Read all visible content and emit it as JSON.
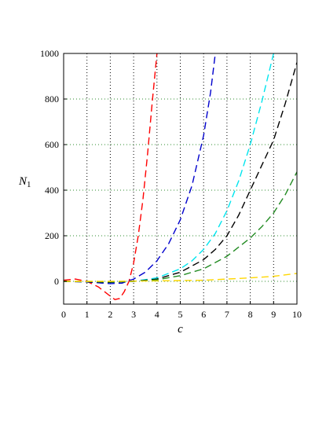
{
  "chart_data": {
    "type": "line",
    "xlabel": "c",
    "ylabel_main": "N",
    "ylabel_sub": "1",
    "xlim": [
      0,
      10
    ],
    "ylim": [
      -100,
      1000
    ],
    "xticks": [
      0,
      1,
      2,
      3,
      4,
      5,
      6,
      7,
      8,
      9,
      10
    ],
    "yticks": [
      0,
      200,
      400,
      600,
      800,
      1000
    ],
    "grid": {
      "vertical": {
        "style": "dotted",
        "color": "#000000"
      },
      "horizontal": {
        "style": "dotted",
        "color": "#2e8b2e"
      }
    },
    "legend": "none",
    "series": [
      {
        "color": "#ff0000",
        "style": "dashed",
        "x": [
          0,
          0.5,
          1.0,
          1.5,
          2.0,
          2.2,
          2.4,
          2.6,
          2.8,
          3.0,
          3.2,
          3.4,
          3.6,
          3.8,
          4.0
        ],
        "y": [
          5,
          10,
          0,
          -25,
          -65,
          -80,
          -75,
          -45,
          0,
          80,
          200,
          360,
          560,
          790,
          1000
        ]
      },
      {
        "color": "#0000cd",
        "style": "dashed",
        "x": [
          0,
          1,
          2,
          2.5,
          3.0,
          3.5,
          4.0,
          4.5,
          5.0,
          5.5,
          6.0,
          6.3,
          6.5
        ],
        "y": [
          0,
          -3,
          -10,
          -8,
          10,
          40,
          90,
          165,
          270,
          420,
          640,
          830,
          1000
        ]
      },
      {
        "color": "#00e5ee",
        "style": "dashed",
        "x": [
          0,
          1,
          2,
          3,
          4,
          5,
          5.5,
          6,
          6.5,
          7,
          7.5,
          8,
          8.5,
          9.0
        ],
        "y": [
          0,
          -2,
          -5,
          0,
          15,
          55,
          90,
          140,
          210,
          310,
          440,
          600,
          790,
          1000
        ]
      },
      {
        "color": "#000000",
        "style": "dashed",
        "x": [
          0,
          1,
          2,
          3,
          4,
          5,
          6,
          6.5,
          7,
          7.5,
          8,
          8.5,
          9,
          9.5,
          10
        ],
        "y": [
          0,
          -2,
          -4,
          0,
          10,
          40,
          95,
          140,
          200,
          290,
          400,
          510,
          620,
          780,
          960
        ]
      },
      {
        "color": "#228b22",
        "style": "dashed",
        "x": [
          0,
          1,
          2,
          3,
          4,
          5,
          6,
          7,
          8,
          8.5,
          9,
          9.5,
          10
        ],
        "y": [
          0,
          -1,
          -2,
          0,
          7,
          25,
          55,
          110,
          190,
          240,
          300,
          380,
          480
        ]
      },
      {
        "color": "#ffd700",
        "style": "dashed",
        "x": [
          0,
          2,
          4,
          6,
          7,
          8,
          9,
          10
        ],
        "y": [
          0,
          0,
          2,
          5,
          10,
          15,
          22,
          35
        ]
      }
    ]
  }
}
